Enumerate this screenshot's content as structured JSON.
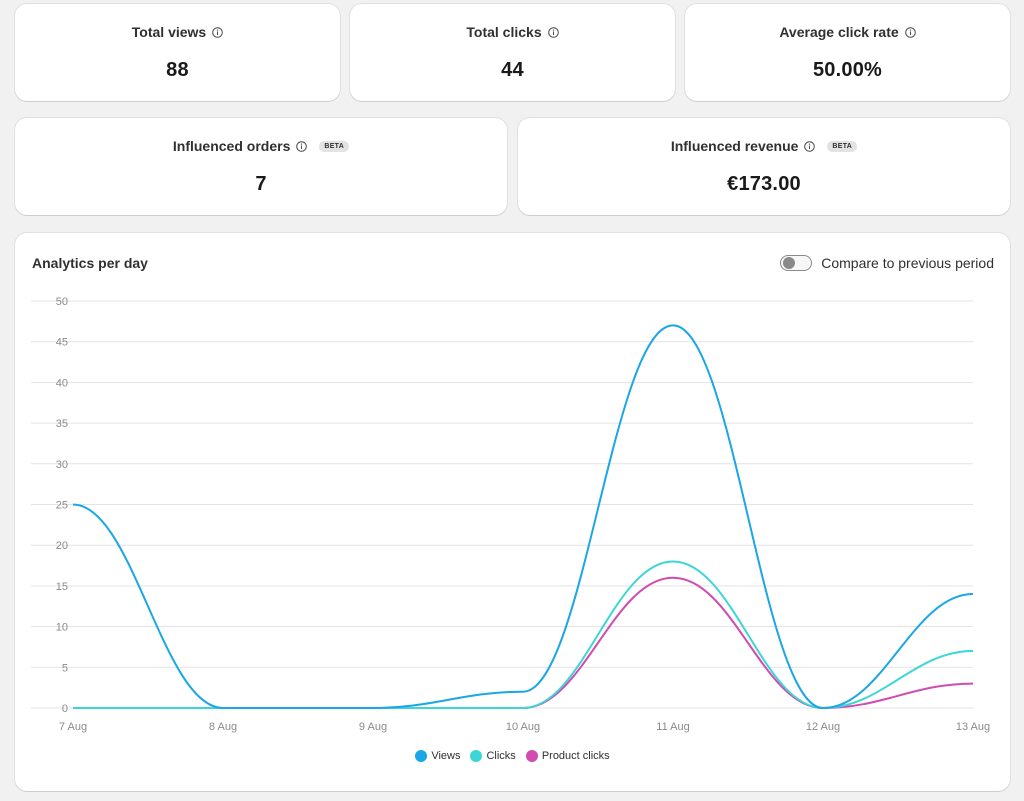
{
  "metrics_top": [
    {
      "label": "Total views",
      "value": "88"
    },
    {
      "label": "Total clicks",
      "value": "44"
    },
    {
      "label": "Average click rate",
      "value": "50.00%"
    }
  ],
  "metrics_bottom": [
    {
      "label": "Influenced orders",
      "badge": "BETA",
      "value": "7"
    },
    {
      "label": "Influenced revenue",
      "badge": "BETA",
      "value": "€173.00"
    }
  ],
  "chart_card": {
    "title": "Analytics per day",
    "compare_label": "Compare to previous period",
    "compare_enabled": false
  },
  "legend": [
    {
      "label": "Views",
      "color": "#1ba6e6"
    },
    {
      "label": "Clicks",
      "color": "#3cd6d6"
    },
    {
      "label": "Product clicks",
      "color": "#d14bb0"
    }
  ],
  "colors": {
    "views": "#1ba6e6",
    "clicks": "#3cd6d6",
    "product_clicks": "#d14bb0",
    "grid": "#e3e3e3",
    "tick_text": "#8a8a8a"
  },
  "icons": {
    "info": "info-circle-icon"
  },
  "chart_data": {
    "type": "line",
    "title": "Analytics per day",
    "xlabel": "",
    "ylabel": "",
    "categories": [
      "7 Aug",
      "8 Aug",
      "9 Aug",
      "10 Aug",
      "11 Aug",
      "12 Aug",
      "13 Aug"
    ],
    "ylim": [
      0,
      50
    ],
    "yticks": [
      0,
      5,
      10,
      15,
      20,
      25,
      30,
      35,
      40,
      45,
      50
    ],
    "grid": true,
    "legend_position": "bottom",
    "series": [
      {
        "name": "Views",
        "values": [
          25,
          0,
          0,
          2,
          47,
          0,
          14
        ]
      },
      {
        "name": "Clicks",
        "values": [
          0,
          0,
          0,
          0,
          18,
          0,
          7
        ]
      },
      {
        "name": "Product clicks",
        "values": [
          0,
          0,
          0,
          0,
          16,
          0,
          3
        ]
      }
    ]
  }
}
